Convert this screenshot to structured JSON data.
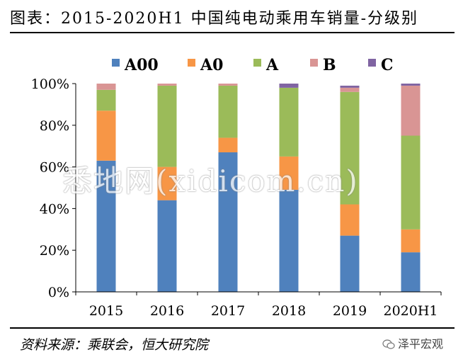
{
  "header": {
    "title": "图表：2015-2020H1 中国纯电动乘用车销量-分级别"
  },
  "footer": {
    "source": "资料来源：乘联会，恒大研究院",
    "brand": "泽平宏观"
  },
  "watermark": "悉地网(xidicom.cn)",
  "chart_data": {
    "type": "bar",
    "stacked": true,
    "categories": [
      "2015",
      "2016",
      "2017",
      "2018",
      "2019",
      "2020H1"
    ],
    "series": [
      {
        "name": "A00",
        "color": "#4f81bd",
        "values": [
          63,
          44,
          67,
          49,
          27,
          19
        ]
      },
      {
        "name": "A0",
        "color": "#f79646",
        "values": [
          24,
          16,
          7,
          16,
          15,
          11
        ]
      },
      {
        "name": "A",
        "color": "#9bbb59",
        "values": [
          10,
          39,
          25,
          33,
          54,
          45
        ]
      },
      {
        "name": "B",
        "color": "#d99594",
        "values": [
          3,
          1,
          1,
          0,
          2,
          24
        ]
      },
      {
        "name": "C",
        "color": "#8064a2",
        "values": [
          0,
          0,
          0,
          2,
          1,
          1
        ]
      }
    ],
    "ylim": [
      0,
      100
    ],
    "yticks": [
      "0%",
      "20%",
      "40%",
      "60%",
      "80%",
      "100%"
    ],
    "legend_position": "top"
  }
}
